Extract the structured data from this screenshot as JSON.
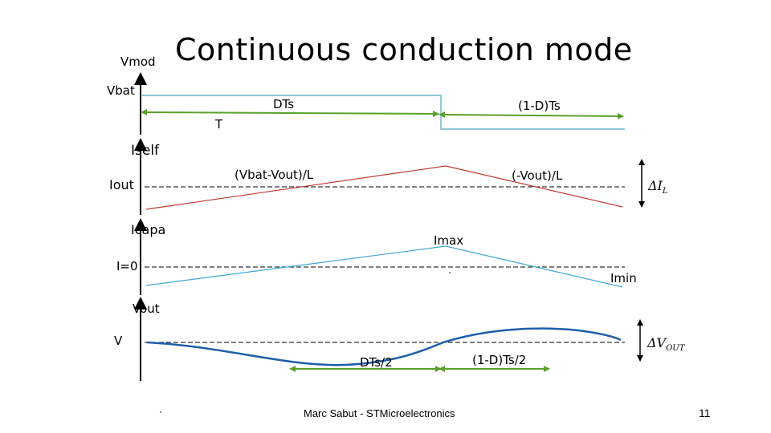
{
  "title": "Continuous conduction mode",
  "colors": {
    "voltage_signal": "#4aa8c7",
    "period_arrow": "#5aa02c",
    "inductor_current": "#c0392b",
    "capacitor_current": "#3fa6d6",
    "output_voltage": "#1f5fa8",
    "axis": "#000000",
    "dashed_reference": "#000000"
  },
  "labels": {
    "vmod": "Vmod",
    "vbat": "Vbat",
    "dts": "DTs",
    "one_minus_d_ts": "(1-D)Ts",
    "t": "T",
    "iself": "Iself",
    "iout": "Iout",
    "rise_slope": "(Vbat-Vout)/L",
    "fall_slope": "(-Vout)/L",
    "delta_il": "ΔI",
    "delta_il_sub": "L",
    "icapa": "Icapa",
    "imax": "Imax",
    "i_zero": "I=0",
    "imin": "Imin",
    "vout": "Vout",
    "v": "V",
    "delta_vout": "ΔV",
    "delta_vout_sub": "OUT",
    "dts_half": "DTs/2",
    "one_minus_d_ts_half": "(1-D)Ts/2"
  },
  "footer": {
    "author": "Marc Sabut - STMicroelectronics",
    "page_number": "11"
  }
}
